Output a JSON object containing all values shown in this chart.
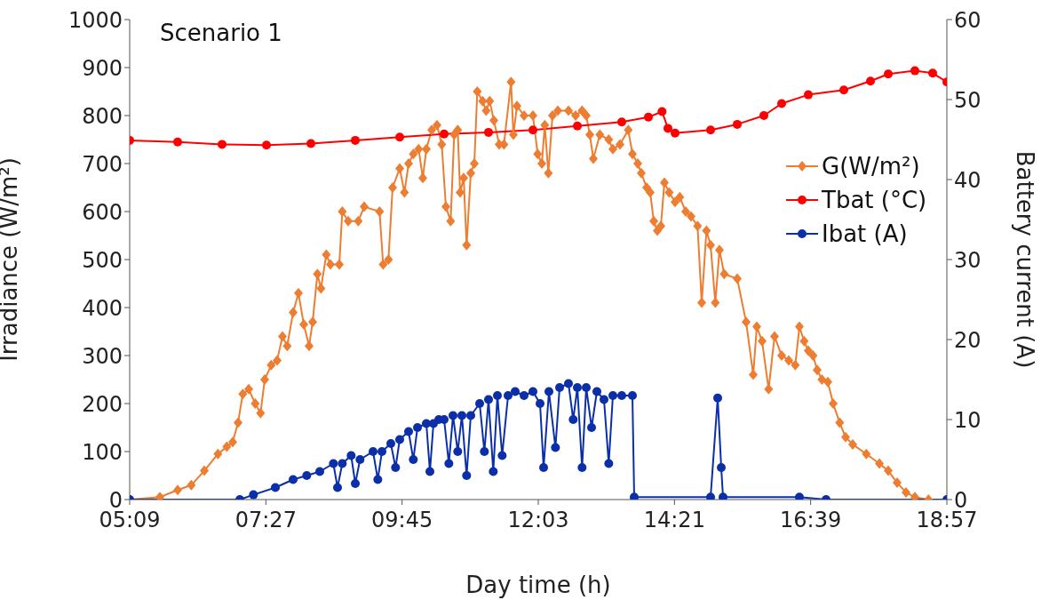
{
  "chart_data": {
    "type": "line",
    "title": "Scenario 1",
    "xlabel": "Day time (h)",
    "ylabel": "Irradiance (W/m²)",
    "y2label": "Battery current (A)",
    "xlim": [
      5.15,
      18.95
    ],
    "xticks": [
      {
        "value": 5.15,
        "label": "05:09"
      },
      {
        "value": 7.45,
        "label": "07:27"
      },
      {
        "value": 9.75,
        "label": "09:45"
      },
      {
        "value": 12.05,
        "label": "12:03"
      },
      {
        "value": 14.35,
        "label": "14:21"
      },
      {
        "value": 16.65,
        "label": "16:39"
      },
      {
        "value": 18.95,
        "label": "18:57"
      }
    ],
    "ylim": [
      0,
      1000
    ],
    "yticks": [
      0,
      100,
      200,
      300,
      400,
      500,
      600,
      700,
      800,
      900,
      1000
    ],
    "y2lim": [
      0,
      60
    ],
    "y2ticks": [
      0,
      10,
      20,
      30,
      40,
      50,
      60
    ],
    "grid": false,
    "legend": "right",
    "series": [
      {
        "name": "G(W/m²)",
        "color": "#ed7d31",
        "marker": "diamond",
        "x": [
          5.15,
          5.66,
          5.96,
          6.19,
          6.41,
          6.64,
          6.79,
          6.89,
          6.98,
          7.06,
          7.16,
          7.27,
          7.36,
          7.43,
          7.54,
          7.64,
          7.73,
          7.81,
          7.91,
          8.0,
          8.09,
          8.18,
          8.24,
          8.32,
          8.38,
          8.47,
          8.54,
          8.69,
          8.74,
          8.84,
          9.01,
          9.11,
          9.37,
          9.43,
          9.52,
          9.59,
          9.71,
          9.79,
          9.86,
          9.94,
          10.03,
          10.1,
          10.16,
          10.25,
          10.34,
          10.42,
          10.49,
          10.57,
          10.63,
          10.69,
          10.73,
          10.79,
          10.84,
          10.91,
          10.97,
          11.02,
          11.11,
          11.17,
          11.23,
          11.3,
          11.39,
          11.47,
          11.59,
          11.63,
          11.69,
          11.81,
          11.96,
          12.04,
          12.11,
          12.16,
          12.22,
          12.29,
          12.38,
          12.56,
          12.68,
          12.79,
          12.86,
          12.92,
          12.98,
          13.09,
          13.24,
          13.31,
          13.43,
          13.57,
          13.64,
          13.73,
          13.79,
          13.88,
          13.94,
          14.0,
          14.06,
          14.12,
          14.18,
          14.26,
          14.36,
          14.44,
          14.54,
          14.63,
          14.74,
          14.81,
          14.89,
          14.96,
          15.04,
          15.11,
          15.19,
          15.41,
          15.56,
          15.68,
          15.74,
          15.83,
          15.94,
          16.04,
          16.16,
          16.28,
          16.39,
          16.46,
          16.54,
          16.61,
          16.69,
          16.76,
          16.84,
          16.94,
          17.03,
          17.14,
          17.24,
          17.36,
          17.59,
          17.81,
          17.96,
          18.11,
          18.26,
          18.41,
          18.64,
          18.95
        ],
        "values": [
          0,
          5,
          20,
          30,
          60,
          95,
          110,
          120,
          160,
          220,
          230,
          200,
          180,
          250,
          280,
          290,
          340,
          320,
          390,
          430,
          365,
          320,
          370,
          470,
          440,
          510,
          490,
          490,
          600,
          580,
          580,
          610,
          600,
          490,
          500,
          650,
          690,
          640,
          700,
          720,
          730,
          670,
          730,
          770,
          780,
          740,
          610,
          580,
          760,
          770,
          640,
          670,
          530,
          680,
          700,
          850,
          830,
          810,
          830,
          790,
          740,
          740,
          870,
          760,
          820,
          800,
          800,
          720,
          700,
          780,
          680,
          800,
          810,
          810,
          800,
          810,
          800,
          760,
          710,
          760,
          750,
          730,
          740,
          770,
          720,
          700,
          680,
          650,
          640,
          580,
          560,
          570,
          660,
          640,
          620,
          630,
          600,
          590,
          570,
          410,
          560,
          530,
          410,
          520,
          470,
          460,
          370,
          260,
          360,
          330,
          230,
          340,
          300,
          290,
          280,
          360,
          330,
          310,
          300,
          270,
          250,
          245,
          200,
          160,
          130,
          115,
          95,
          75,
          60,
          35,
          15,
          5,
          0,
          0
        ]
      },
      {
        "name": "Tbat (°C)",
        "color": "#ff0000",
        "marker": "circle",
        "axis": "y2",
        "x": [
          5.15,
          5.96,
          6.71,
          7.46,
          8.21,
          8.96,
          9.71,
          10.46,
          11.21,
          11.96,
          12.71,
          13.46,
          13.91,
          14.14,
          14.24,
          14.36,
          14.96,
          15.41,
          15.86,
          16.16,
          16.61,
          17.21,
          17.66,
          17.96,
          18.41,
          18.71,
          18.95
        ],
        "values": [
          44.9,
          44.7,
          44.4,
          44.3,
          44.5,
          44.9,
          45.3,
          45.7,
          45.9,
          46.2,
          46.7,
          47.2,
          47.8,
          48.5,
          46.4,
          45.8,
          46.2,
          46.9,
          48.0,
          49.5,
          50.6,
          51.2,
          52.3,
          53.2,
          53.6,
          53.3,
          52.2
        ]
      },
      {
        "name": "Ibat (A)",
        "color": "#0a2fa8",
        "marker": "circle",
        "axis": "y2",
        "x": [
          5.15,
          7.01,
          7.24,
          7.61,
          7.91,
          8.14,
          8.36,
          8.59,
          8.66,
          8.74,
          8.89,
          8.96,
          9.04,
          9.26,
          9.34,
          9.41,
          9.56,
          9.64,
          9.71,
          9.86,
          9.94,
          10.01,
          10.16,
          10.22,
          10.28,
          10.37,
          10.46,
          10.54,
          10.61,
          10.69,
          10.76,
          10.84,
          10.91,
          11.06,
          11.14,
          11.21,
          11.29,
          11.36,
          11.44,
          11.54,
          11.66,
          11.81,
          11.96,
          12.08,
          12.14,
          12.23,
          12.34,
          12.41,
          12.56,
          12.64,
          12.71,
          12.79,
          12.86,
          12.95,
          13.04,
          13.16,
          13.24,
          13.31,
          13.46,
          13.64,
          13.67,
          14.96,
          15.08,
          15.14,
          15.17,
          16.46,
          16.91,
          18.95
        ],
        "values": [
          0,
          0,
          0.6,
          1.5,
          2.5,
          3,
          3.5,
          4.5,
          1.5,
          4.5,
          5.5,
          2,
          5,
          6,
          2.5,
          6,
          7,
          4,
          7.5,
          8.5,
          5,
          9,
          9.5,
          3.5,
          9.5,
          10,
          10,
          4.5,
          10.5,
          6,
          10.5,
          3,
          10.5,
          12,
          6,
          12.5,
          3.5,
          13,
          5.5,
          13,
          13.5,
          13,
          13.5,
          12,
          4,
          13.5,
          6.5,
          14,
          14.5,
          10,
          14,
          4,
          14,
          9,
          13.5,
          12.5,
          4.5,
          13,
          13,
          13,
          0.3,
          0.3,
          12.7,
          4,
          0.3,
          0.3,
          0,
          0
        ]
      }
    ]
  }
}
